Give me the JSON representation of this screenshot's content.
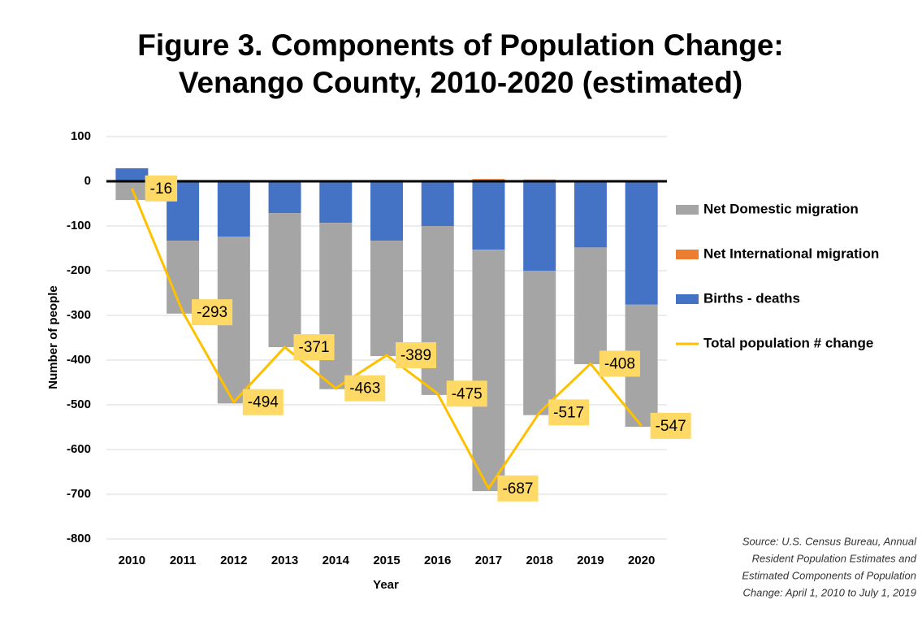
{
  "chart_data": {
    "type": "stacked-bar-line",
    "title": [
      "Figure 3. Components of Population Change:",
      "Venango County, 2010-2020 (estimated)"
    ],
    "x_label": "Year",
    "y_label": "Number of people",
    "categories": [
      "2010",
      "2011",
      "2012",
      "2013",
      "2014",
      "2015",
      "2016",
      "2017",
      "2018",
      "2019",
      "2020"
    ],
    "series": [
      {
        "name": "Births - deaths",
        "color": "#4472c4",
        "kind": "bar",
        "values": [
          29,
          -133,
          -124,
          -71,
          -93,
          -133,
          -100,
          -153,
          -200,
          -148,
          -276
        ]
      },
      {
        "name": "Net International migration",
        "color": "#ed7d31",
        "kind": "bar",
        "values": [
          0,
          3,
          3,
          2,
          2,
          3,
          3,
          5,
          4,
          2,
          1
        ]
      },
      {
        "name": "Net Domestic migration",
        "color": "#a5a5a5",
        "kind": "bar",
        "values": [
          -42,
          -163,
          -373,
          -300,
          -372,
          -258,
          -378,
          -540,
          -323,
          -261,
          -273
        ]
      },
      {
        "name": "Total population # change",
        "color": "#ffc000",
        "kind": "line",
        "values": [
          -16,
          -293,
          -494,
          -371,
          -463,
          -389,
          -475,
          -687,
          -517,
          -408,
          -547
        ]
      }
    ],
    "legend_order": [
      2,
      1,
      0,
      3
    ],
    "ylim": [
      -800,
      100
    ],
    "yticks": [
      -800,
      -700,
      -600,
      -500,
      -400,
      -300,
      -200,
      -100,
      0,
      100
    ],
    "grid": true,
    "source": [
      "Source: U.S. Census Bureau, Annual",
      "Resident Population Estimates and",
      "Estimated Components of Population",
      "Change: April 1, 2010 to July 1, 2019"
    ]
  }
}
